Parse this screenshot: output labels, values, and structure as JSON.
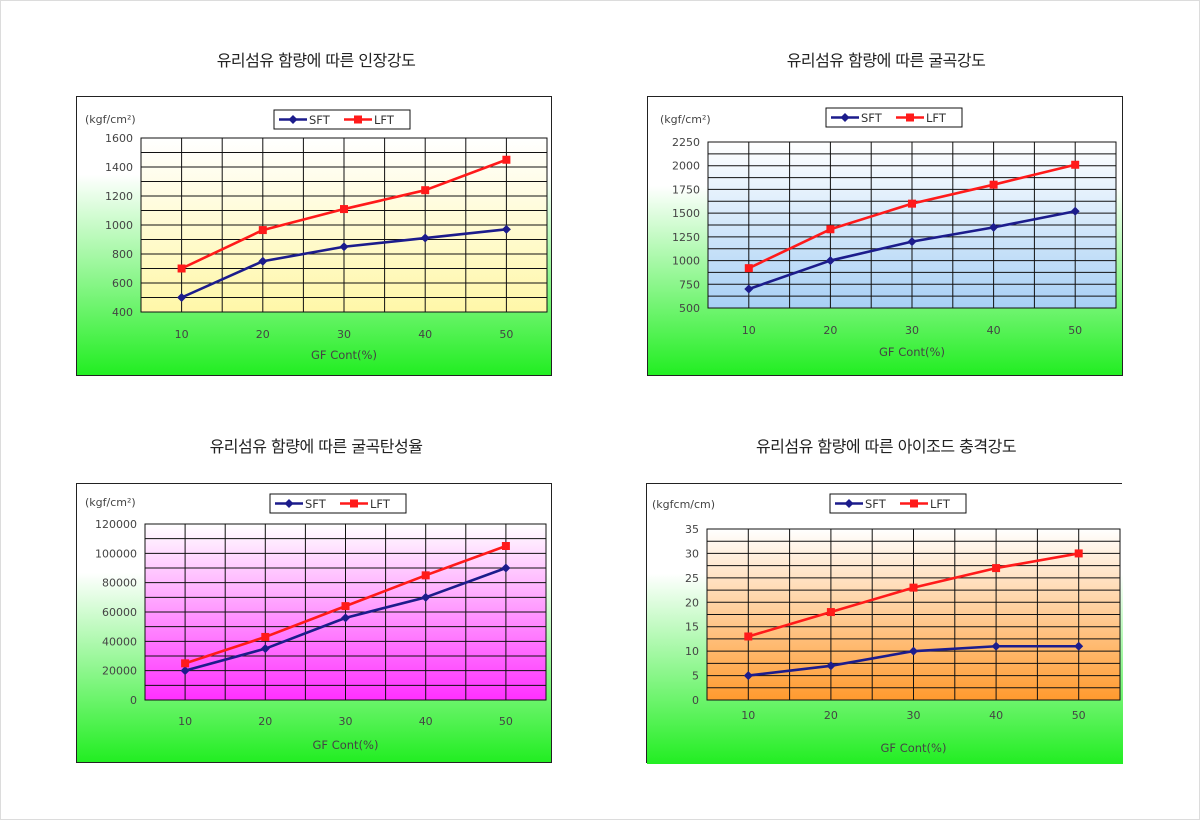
{
  "charts": [
    {
      "title": "유리섬유 함량에 따른 인장강도",
      "chart_data": {
        "type": "line",
        "title": "유리섬유 함량에 따른 인장강도",
        "xlabel": "GF Cont(%)",
        "ylabel": "",
        "unit": "(kgf/cm²)",
        "categories": [
          "10",
          "20",
          "30",
          "40",
          "50"
        ],
        "ylim": [
          400,
          1600
        ],
        "yticks": [
          400,
          600,
          800,
          1000,
          1200,
          1400,
          1600
        ],
        "ytick_labels": [
          "400",
          "600",
          "800",
          "1000",
          "1200",
          "1400",
          "1600"
        ],
        "grid": true,
        "legend": "top-center",
        "series": [
          {
            "name": "SFT",
            "values": [
              500,
              750,
              850,
              910,
              970
            ]
          },
          {
            "name": "LFT",
            "values": [
              700,
              965,
              1110,
              1240,
              1450
            ]
          }
        ]
      }
    },
    {
      "title": "유리섬유 함량에 따른 굴곡강도",
      "chart_data": {
        "type": "line",
        "title": "유리섬유 함량에 따른 굴곡강도",
        "xlabel": "GF Cont(%)",
        "ylabel": "",
        "unit": "(kgf/cm²)",
        "categories": [
          "10",
          "20",
          "30",
          "40",
          "50"
        ],
        "ylim": [
          500,
          2250
        ],
        "yticks": [
          500,
          750,
          1000,
          1250,
          1500,
          1750,
          2000,
          2250
        ],
        "ytick_labels": [
          "500",
          "750",
          "1000",
          "1250",
          "1500",
          "1750",
          "2000",
          "2250"
        ],
        "grid": true,
        "legend": "top-center",
        "series": [
          {
            "name": "SFT",
            "values": [
              700,
              1000,
              1200,
              1350,
              1520
            ]
          },
          {
            "name": "LFT",
            "values": [
              920,
              1330,
              1600,
              1800,
              2010
            ]
          }
        ]
      }
    },
    {
      "title": "유리섬유 함량에 따른 굴곡탄성율",
      "chart_data": {
        "type": "line",
        "title": "유리섬유 함량에 따른 굴곡탄성율",
        "xlabel": "GF Cont(%)",
        "ylabel": "",
        "unit": "(kgf/cm²)",
        "categories": [
          "10",
          "20",
          "30",
          "40",
          "50"
        ],
        "ylim": [
          0,
          120000
        ],
        "yticks": [
          0,
          20000,
          40000,
          60000,
          80000,
          100000,
          120000
        ],
        "ytick_labels": [
          "0",
          "20000",
          "40000",
          "60000",
          "80000",
          "100000",
          "120000"
        ],
        "grid": true,
        "legend": "top-center",
        "series": [
          {
            "name": "SFT",
            "values": [
              20000,
              35000,
              56000,
              70000,
              90000
            ]
          },
          {
            "name": "LFT",
            "values": [
              25000,
              43000,
              64000,
              85000,
              105000
            ]
          }
        ]
      }
    },
    {
      "title": "유리섬유 함량에 따른 아이조드 충격강도",
      "chart_data": {
        "type": "line",
        "title": "유리섬유 함량에 따른 아이조드 충격강도",
        "xlabel": "GF Cont(%)",
        "ylabel": "",
        "unit": "(kgfcm/cm)",
        "categories": [
          "10",
          "20",
          "30",
          "40",
          "50"
        ],
        "ylim": [
          0,
          35
        ],
        "yticks": [
          0,
          5,
          10,
          15,
          20,
          25,
          30,
          35
        ],
        "ytick_labels": [
          "0",
          "5",
          "10",
          "15",
          "20",
          "25",
          "30",
          "35"
        ],
        "grid": true,
        "legend": "top-center",
        "series": [
          {
            "name": "SFT",
            "values": [
              5,
              7,
              10,
              11,
              11
            ]
          },
          {
            "name": "LFT",
            "values": [
              13,
              18,
              23,
              27,
              30
            ]
          }
        ]
      }
    }
  ],
  "colors": {
    "sft": "#1c1c8c",
    "lft": "#ff1a1a",
    "panel_bottom": "#22ee22",
    "panel_top": "#ffffff",
    "plot_tints": [
      "#fff7a8",
      "#a8d0f5",
      "#ff30ff",
      "#ff9a2e"
    ]
  }
}
